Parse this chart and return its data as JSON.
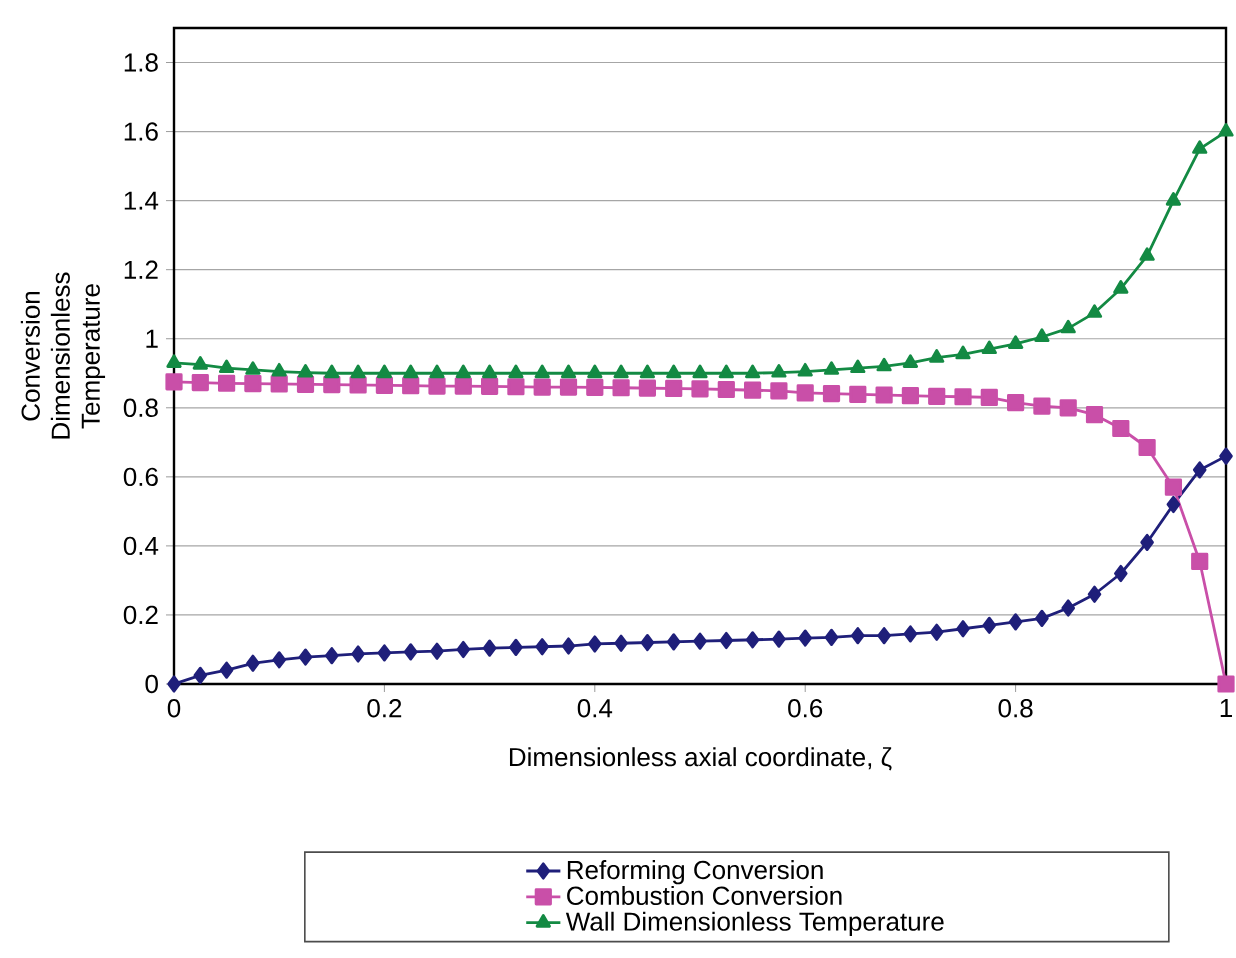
{
  "chart_data": {
    "type": "line",
    "xlabel": "Dimensionless axial coordinate, ζ",
    "ylabel": "Conversion Dimensionless Temperature",
    "x": [
      0,
      0.025,
      0.05,
      0.075,
      0.1,
      0.125,
      0.15,
      0.175,
      0.2,
      0.225,
      0.25,
      0.275,
      0.3,
      0.325,
      0.35,
      0.375,
      0.4,
      0.425,
      0.45,
      0.475,
      0.5,
      0.525,
      0.55,
      0.575,
      0.6,
      0.625,
      0.65,
      0.675,
      0.7,
      0.725,
      0.75,
      0.775,
      0.8,
      0.825,
      0.85,
      0.875,
      0.9,
      0.925,
      0.95,
      0.975,
      1
    ],
    "xlim": [
      0,
      1
    ],
    "xticks": [
      0,
      0.2,
      0.4,
      0.6,
      0.8,
      1
    ],
    "ylim": [
      0,
      1.9
    ],
    "yticks": [
      0,
      0.2,
      0.4,
      0.6,
      0.8,
      1,
      1.2,
      1.4,
      1.6,
      1.8
    ],
    "grid": "y",
    "legend": "bottom",
    "series": [
      {
        "name": "Reforming Conversion",
        "color": "#1f1f7a",
        "marker": "diamond",
        "values": [
          0,
          0.025,
          0.04,
          0.06,
          0.07,
          0.078,
          0.082,
          0.087,
          0.09,
          0.093,
          0.095,
          0.1,
          0.104,
          0.106,
          0.108,
          0.11,
          0.116,
          0.118,
          0.12,
          0.122,
          0.124,
          0.126,
          0.128,
          0.13,
          0.133,
          0.135,
          0.14,
          0.14,
          0.145,
          0.15,
          0.16,
          0.17,
          0.18,
          0.19,
          0.22,
          0.26,
          0.32,
          0.41,
          0.52,
          0.62,
          0.66
        ]
      },
      {
        "name": "Combustion Conversion",
        "color": "#c94fa8",
        "marker": "square",
        "values": [
          0.875,
          0.873,
          0.871,
          0.87,
          0.869,
          0.868,
          0.867,
          0.866,
          0.865,
          0.864,
          0.863,
          0.863,
          0.862,
          0.861,
          0.86,
          0.86,
          0.859,
          0.858,
          0.857,
          0.856,
          0.855,
          0.853,
          0.851,
          0.849,
          0.843,
          0.841,
          0.839,
          0.837,
          0.835,
          0.833,
          0.832,
          0.83,
          0.815,
          0.805,
          0.8,
          0.78,
          0.74,
          0.685,
          0.57,
          0.355,
          0
        ]
      },
      {
        "name": "Wall Dimensionless Temperature",
        "color": "#138a43",
        "marker": "triangle",
        "values": [
          0.93,
          0.925,
          0.915,
          0.91,
          0.905,
          0.902,
          0.9,
          0.9,
          0.9,
          0.9,
          0.9,
          0.9,
          0.9,
          0.9,
          0.9,
          0.9,
          0.9,
          0.9,
          0.9,
          0.9,
          0.9,
          0.9,
          0.9,
          0.902,
          0.905,
          0.91,
          0.915,
          0.92,
          0.93,
          0.945,
          0.955,
          0.97,
          0.985,
          1.005,
          1.03,
          1.075,
          1.145,
          1.24,
          1.4,
          1.55,
          1.6
        ]
      }
    ]
  }
}
